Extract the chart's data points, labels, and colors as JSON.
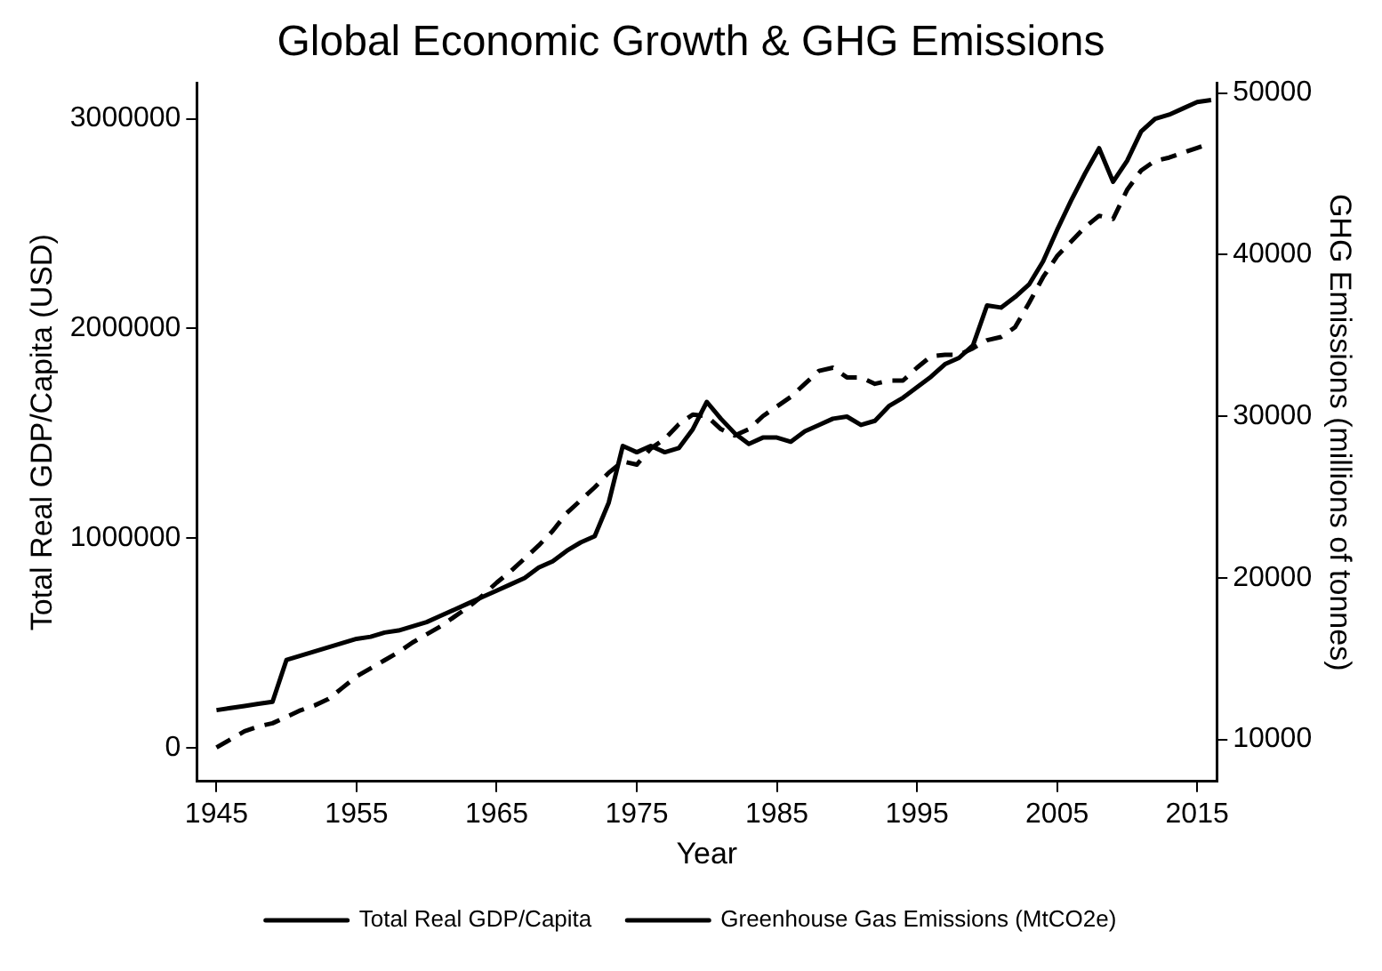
{
  "chart_data": {
    "type": "line",
    "title": "Global Economic Growth & GHG Emissions",
    "xlabel": "Year",
    "ylabel": "Total Real GDP/Capita (USD)",
    "y2label": "GHG Emissions (millions of tonnes)",
    "x": [
      1945,
      1946,
      1947,
      1948,
      1949,
      1950,
      1951,
      1952,
      1953,
      1954,
      1955,
      1956,
      1957,
      1958,
      1959,
      1960,
      1961,
      1962,
      1963,
      1964,
      1965,
      1966,
      1967,
      1968,
      1969,
      1970,
      1971,
      1972,
      1973,
      1974,
      1975,
      1976,
      1977,
      1978,
      1979,
      1980,
      1981,
      1982,
      1983,
      1984,
      1985,
      1986,
      1987,
      1988,
      1989,
      1990,
      1991,
      1992,
      1993,
      1994,
      1995,
      1996,
      1997,
      1998,
      1999,
      2000,
      2001,
      2002,
      2003,
      2004,
      2005,
      2006,
      2007,
      2008,
      2009,
      2010,
      2011,
      2012,
      2013,
      2014,
      2015,
      2016
    ],
    "series": [
      {
        "name": "Total Real GDP/Capita",
        "color": "#000000",
        "line_style": "solid",
        "values": [
          180000,
          190000,
          200000,
          210000,
          220000,
          420000,
          440000,
          460000,
          480000,
          500000,
          520000,
          530000,
          550000,
          560000,
          580000,
          600000,
          630000,
          660000,
          690000,
          720000,
          750000,
          780000,
          810000,
          860000,
          890000,
          940000,
          980000,
          1010000,
          1170000,
          1440000,
          1410000,
          1440000,
          1410000,
          1430000,
          1520000,
          1650000,
          1570000,
          1500000,
          1450000,
          1480000,
          1480000,
          1460000,
          1510000,
          1540000,
          1570000,
          1580000,
          1540000,
          1560000,
          1630000,
          1670000,
          1720000,
          1770000,
          1830000,
          1860000,
          1920000,
          2110000,
          2100000,
          2150000,
          2210000,
          2320000,
          2470000,
          2610000,
          2740000,
          2860000,
          2700000,
          2800000,
          2940000,
          3000000,
          3020000,
          3050000,
          3080000,
          3090000
        ]
      },
      {
        "name": "Greenhouse Gas Emissions (MtCO2e)",
        "color": "#000000",
        "line_style": "dashed",
        "axis": "y2",
        "values": [
          9500,
          10000,
          10500,
          10800,
          11000,
          11400,
          11800,
          12100,
          12500,
          13200,
          13900,
          14400,
          14900,
          15400,
          16000,
          16500,
          17000,
          17600,
          18200,
          18900,
          19700,
          20400,
          21200,
          22000,
          22900,
          24000,
          24800,
          25600,
          26500,
          27200,
          27000,
          28000,
          28600,
          29500,
          30100,
          30000,
          29200,
          28800,
          29200,
          30000,
          30600,
          31200,
          32000,
          32800,
          33000,
          32400,
          32400,
          32000,
          32200,
          32200,
          33000,
          33700,
          33800,
          33800,
          34200,
          34700,
          34900,
          35500,
          37000,
          38600,
          39900,
          40800,
          41700,
          42400,
          42200,
          44000,
          45200,
          45800,
          46000,
          46300,
          46600,
          46900
        ]
      }
    ],
    "xlim": [
      1943.6,
      2016.4
    ],
    "xticks": [
      1945,
      1955,
      1965,
      1975,
      1985,
      1995,
      2005,
      2015
    ],
    "ylim": [
      -160000,
      3170000
    ],
    "yticks": [
      0,
      1000000,
      2000000,
      3000000
    ],
    "y2lim": [
      7400,
      50600
    ],
    "y2ticks": [
      10000,
      20000,
      30000,
      40000,
      50000
    ],
    "grid": false,
    "legend": "bottom",
    "marker": "none"
  }
}
